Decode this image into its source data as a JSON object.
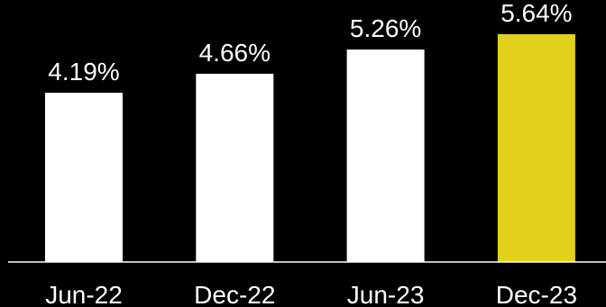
{
  "chart_data": {
    "type": "bar",
    "categories": [
      "Jun-22",
      "Dec-22",
      "Jun-23",
      "Dec-23"
    ],
    "values": [
      4.19,
      4.66,
      5.26,
      5.64
    ],
    "value_labels": [
      "4.19%",
      "4.66%",
      "5.26%",
      "5.64%"
    ],
    "ylim": [
      0,
      6.04
    ],
    "grid": false,
    "legend": "none",
    "colors": [
      "#ffffff",
      "#ffffff",
      "#ffffff",
      "#e3d01a"
    ],
    "axis_color": "#ffffff"
  }
}
